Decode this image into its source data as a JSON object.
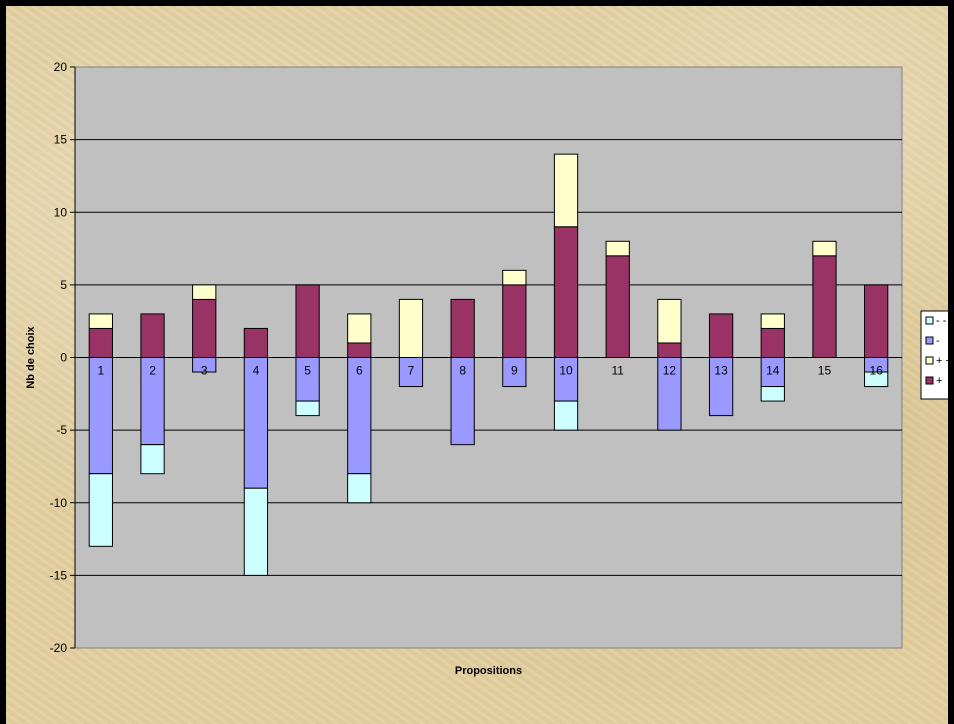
{
  "chart_data": {
    "type": "bar",
    "stacked": true,
    "title": "",
    "xlabel": "Propositions",
    "ylabel": "Nb de choix",
    "ylim": [
      -20,
      20
    ],
    "yticks": [
      20,
      15,
      10,
      5,
      0,
      -5,
      -10,
      -15,
      -20
    ],
    "grid": true,
    "legend_position": "right",
    "categories": [
      "1",
      "2",
      "3",
      "4",
      "5",
      "6",
      "7",
      "8",
      "9",
      "10",
      "11",
      "12",
      "13",
      "14",
      "15",
      "16"
    ],
    "series": [
      {
        "name": "- -",
        "color": "#ccffff",
        "values": [
          -5,
          -2,
          0,
          -6,
          -1,
          -2,
          0,
          0,
          0,
          -2,
          0,
          0,
          0,
          -1,
          0,
          -1
        ]
      },
      {
        "name": "-",
        "color": "#9999ff",
        "values": [
          -8,
          -6,
          -1,
          -9,
          -3,
          -8,
          -2,
          -6,
          -2,
          -3,
          0,
          -5,
          -4,
          -2,
          0,
          -1
        ]
      },
      {
        "name": "+ +",
        "color": "#ffffcc",
        "values": [
          1,
          0,
          1,
          0,
          0,
          2,
          4,
          0,
          1,
          5,
          1,
          3,
          0,
          1,
          1,
          0
        ]
      },
      {
        "name": "+",
        "color": "#993366",
        "values": [
          2,
          3,
          4,
          2,
          5,
          1,
          0,
          4,
          5,
          9,
          7,
          1,
          3,
          2,
          7,
          5
        ]
      }
    ]
  }
}
